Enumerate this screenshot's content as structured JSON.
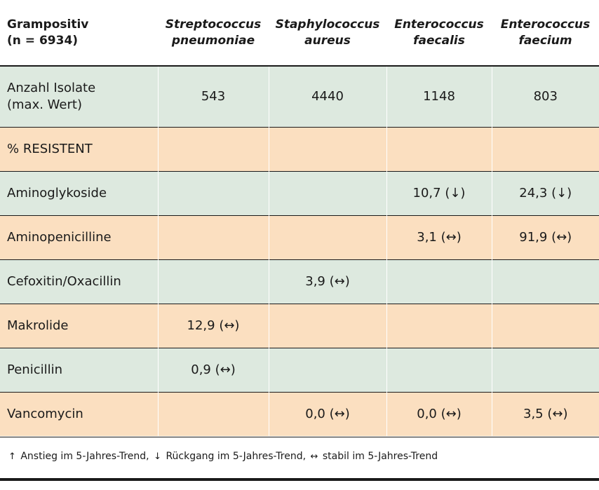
{
  "header": {
    "corner_line1": "Grampositiv",
    "corner_line2": "(n = 6934)",
    "species": [
      {
        "line1": "Streptococcus",
        "line2": "pneumoniae"
      },
      {
        "line1": "Staphylococcus",
        "line2": "aureus"
      },
      {
        "line1": "Enterococcus",
        "line2": "faecalis"
      },
      {
        "line1": "Enterococcus",
        "line2": "faecium"
      }
    ]
  },
  "isolates": {
    "label_line1": "Anzahl Isolate",
    "label_line2": "(max. Wert)",
    "values": [
      "543",
      "4440",
      "1148",
      "803"
    ]
  },
  "section_label": "% RESISTENT",
  "rows": [
    {
      "label": "Aminoglykoside",
      "values": [
        "",
        "",
        "10,7 (↓)",
        "24,3 (↓)"
      ],
      "color": "green"
    },
    {
      "label": "Aminopenicilline",
      "values": [
        "",
        "",
        "3,1 (↔)",
        "91,9 (↔)"
      ],
      "color": "orange"
    },
    {
      "label": "Cefoxitin/Oxacillin",
      "values": [
        "",
        "3,9 (↔)",
        "",
        ""
      ],
      "color": "green"
    },
    {
      "label": "Makrolide",
      "values": [
        "12,9 (↔)",
        "",
        "",
        ""
      ],
      "color": "orange"
    },
    {
      "label": "Penicillin",
      "values": [
        "0,9 (↔)",
        "",
        "",
        ""
      ],
      "color": "green"
    },
    {
      "label": "Vancomycin",
      "values": [
        "",
        "0,0 (↔)",
        "0,0 (↔)",
        "3,5 (↔)"
      ],
      "color": "orange"
    }
  ],
  "footnote": {
    "up_symbol": "↑",
    "up_text": "Anstieg im 5-Jahres-Trend,",
    "down_symbol": "↓",
    "down_text": "Rückgang im 5-Jahres-Trend,",
    "stable_symbol": "↔",
    "stable_text": "stabil im 5-Jahres-Trend"
  },
  "colors": {
    "green": "#dde9df",
    "orange": "#fbdfc0",
    "rule": "#1a1a1a"
  }
}
